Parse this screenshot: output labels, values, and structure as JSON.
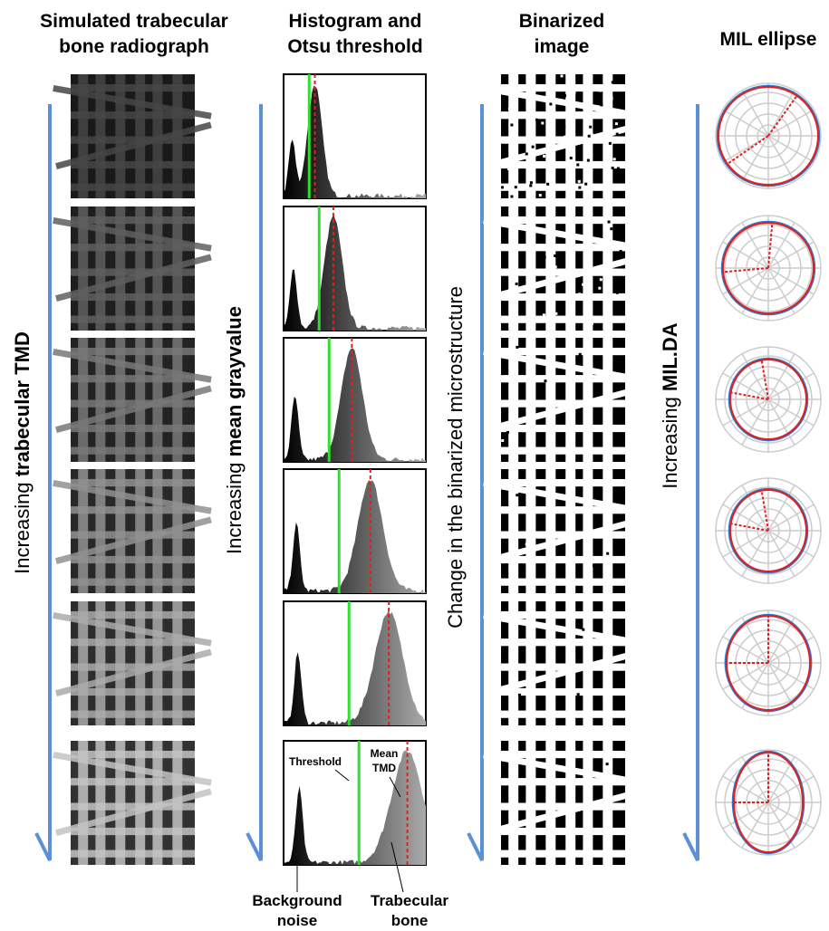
{
  "headers": [
    {
      "lines": [
        "Simulated trabecular",
        "bone radiograph"
      ]
    },
    {
      "lines": [
        "Histogram and",
        "Otsu threshold"
      ]
    },
    {
      "lines": [
        "Binarized",
        "image"
      ]
    },
    {
      "lines": [
        "MIL ellipse"
      ]
    }
  ],
  "arrows": [
    {
      "plain": "Increasing ",
      "bold": "trabecular TMD"
    },
    {
      "plain": "Increasing ",
      "bold": "mean grayvalue"
    },
    {
      "plain": "Change in the binarized microstructure"
    },
    {
      "plain": "Increasing ",
      "bold": "MIL.DA"
    }
  ],
  "annotations": {
    "threshold": "Threshold",
    "mean_tmd": [
      "Mean",
      "TMD"
    ],
    "background_noise": [
      "Background",
      "noise"
    ],
    "trabecular_bone": [
      "Trabecular",
      "bone"
    ]
  }
}
